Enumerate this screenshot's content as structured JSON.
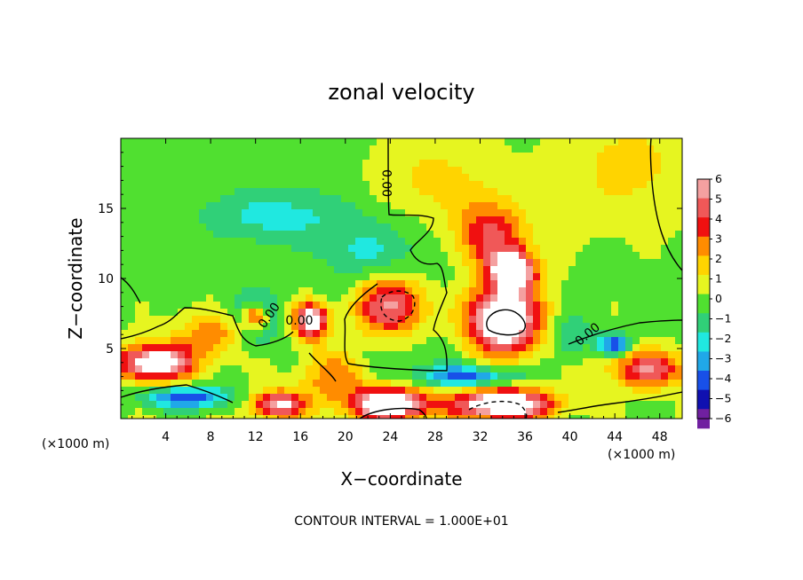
{
  "chart_data": {
    "type": "heatmap",
    "title": "zonal velocity",
    "xlabel": "X−coordinate",
    "ylabel": "Z−coordinate",
    "x_unit_left": "(×1000 m)",
    "x_unit_right": "(×1000 m)",
    "xlim": [
      0,
      50
    ],
    "ylim": [
      0,
      20
    ],
    "x_ticks": [
      4,
      8,
      12,
      16,
      20,
      24,
      28,
      32,
      36,
      40,
      44,
      48
    ],
    "x_tick_labels": [
      "4",
      "8",
      "12",
      "16",
      "20",
      "24",
      "28",
      "32",
      "36",
      "40",
      "44",
      "48"
    ],
    "y_ticks": [
      5,
      10,
      15
    ],
    "y_tick_labels": [
      "5",
      "10",
      "15"
    ],
    "footer": "CONTOUR INTERVAL = 1.000E+01",
    "contour_label": "0.00",
    "colorbar": {
      "levels": [
        6,
        5,
        4,
        3,
        2,
        1,
        0,
        -1,
        -2,
        -3,
        -4,
        -5,
        -6
      ],
      "labels": [
        "6",
        "5",
        "4",
        "3",
        "2",
        "1",
        "0",
        "−1",
        "−2",
        "−3",
        "−4",
        "−5",
        "−6"
      ],
      "colors": [
        "#f4a0a0",
        "#f05858",
        "#f01010",
        "#ff8c00",
        "#ffd400",
        "#e6f520",
        "#50e030",
        "#30d078",
        "#20e8e0",
        "#20a8e8",
        "#1850e8",
        "#1010b0",
        "#7020a0"
      ],
      "over_color": "#ffffff"
    },
    "background_value": 0.3,
    "features": [
      {
        "x": 14,
        "y": 14.5,
        "amp": -2.2,
        "sx": 7,
        "sz": 2
      },
      {
        "x": 24,
        "y": 8,
        "amp": 8.5,
        "sx": 3.6,
        "sz": 2.4
      },
      {
        "x": 24,
        "y": 8,
        "amp": -3.2,
        "sx": 5.2,
        "sz": 3.5
      },
      {
        "x": 34,
        "y": 7,
        "amp": 8.5,
        "sx": 3.4,
        "sz": 2.4
      },
      {
        "x": 35,
        "y": 10.5,
        "amp": 7,
        "sx": 2,
        "sz": 1.4
      },
      {
        "x": 33,
        "y": 13,
        "amp": 4.5,
        "sx": 3,
        "sz": 2.5
      },
      {
        "x": 3,
        "y": 4,
        "amp": 7.5,
        "sx": 3.5,
        "sz": 1.3
      },
      {
        "x": 6,
        "y": 1.5,
        "amp": -4.5,
        "sx": 4,
        "sz": 0.8
      },
      {
        "x": 12,
        "y": 7.3,
        "amp": 7,
        "sx": 1.2,
        "sz": 1
      },
      {
        "x": 12,
        "y": 7.3,
        "amp": -4,
        "sx": 2,
        "sz": 1.8
      },
      {
        "x": 17,
        "y": 7,
        "amp": 7.5,
        "sx": 1.6,
        "sz": 1.3
      },
      {
        "x": 14,
        "y": 1,
        "amp": 6,
        "sx": 2.5,
        "sz": 1
      },
      {
        "x": 24,
        "y": 1,
        "amp": 8,
        "sx": 3.5,
        "sz": 1.2
      },
      {
        "x": 34,
        "y": 1,
        "amp": 8,
        "sx": 4.5,
        "sz": 1.2
      },
      {
        "x": 31,
        "y": 3,
        "amp": -4.5,
        "sx": 4.5,
        "sz": 0.8
      },
      {
        "x": 44,
        "y": 5.3,
        "amp": -5.5,
        "sx": 1.3,
        "sz": 0.7
      },
      {
        "x": 47,
        "y": 3.5,
        "amp": 5,
        "sx": 3.5,
        "sz": 1.3
      },
      {
        "x": 19,
        "y": 3,
        "amp": 3,
        "sx": 3,
        "sz": 2
      },
      {
        "x": 8,
        "y": 6,
        "amp": 3,
        "sx": 3,
        "sz": 1.5
      },
      {
        "x": 45,
        "y": 18,
        "amp": 1.5,
        "sx": 6,
        "sz": 4
      },
      {
        "x": 22,
        "y": 12,
        "amp": -1.5,
        "sx": 4,
        "sz": 2
      },
      {
        "x": 40,
        "y": 6,
        "amp": -2,
        "sx": 2,
        "sz": 1.5
      },
      {
        "x": 28,
        "y": 17,
        "amp": 1.5,
        "sx": 5,
        "sz": 3
      }
    ]
  }
}
